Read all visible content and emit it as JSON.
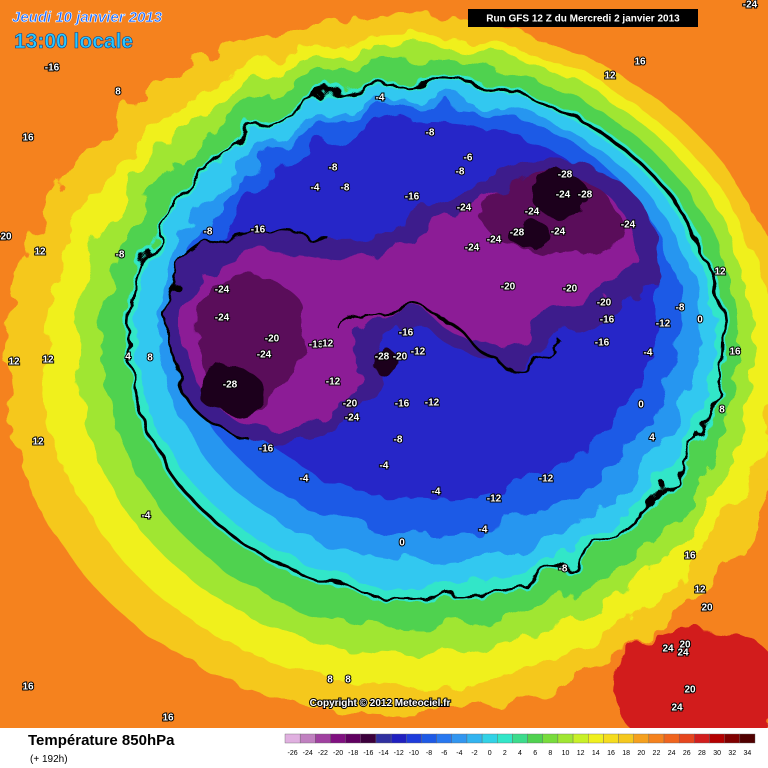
{
  "header": {
    "valid_date": "Jeudi 10 janvier 2013",
    "local_time": "13:00 locale",
    "run": "Run GFS 12 Z du Mercredi 2 janvier 2013"
  },
  "footer": {
    "copyright": "Copyright © 2012 Meteociel.fr",
    "field": "Température 850hPa",
    "lead_time": "(+ 192h)"
  },
  "contour_labels": [
    "-16",
    "8",
    "16",
    "20",
    "12",
    "-4",
    "-8",
    "-8",
    "-8",
    "-6",
    "-8",
    "-4",
    "-8",
    "-16",
    "-8",
    "-16",
    "-24",
    "-28",
    "-24",
    "-28",
    "-24",
    "-28",
    "-24",
    "-24",
    "-24",
    "-24",
    "-20",
    "-20",
    "-24",
    "-24",
    "-20",
    "-24",
    "-16",
    "-12",
    "-28",
    "-16",
    "-28",
    "-20",
    "-12",
    "-12",
    "-20",
    "-24",
    "-16",
    "-12",
    "-8",
    "-16",
    "-4",
    "-4",
    "-4",
    "-12",
    "-12",
    "-4",
    "0",
    "-8",
    "-12",
    "-16",
    "-20",
    "-16",
    "-8",
    "-4",
    "0",
    "4",
    "8",
    "12",
    "16",
    "12",
    "12",
    "4",
    "8",
    "12",
    "-4",
    "8",
    "8",
    "12",
    "16",
    "16",
    "16",
    "20",
    "24",
    "20",
    "24",
    "20",
    "24",
    "0",
    "12",
    "16",
    "-24"
  ],
  "scale": {
    "labels": [
      -26,
      -24,
      -22,
      -20,
      -18,
      -16,
      -14,
      -12,
      -10,
      -8,
      -6,
      -4,
      -2,
      0,
      2,
      4,
      6,
      8,
      10,
      12,
      14,
      16,
      18,
      20,
      22,
      24,
      26,
      28,
      30,
      32,
      34
    ],
    "colors": [
      "#e0b0e0",
      "#c080c0",
      "#a040a0",
      "#801080",
      "#600060",
      "#3c003c",
      "#3030a0",
      "#2020c0",
      "#1e3cdc",
      "#1e5ae6",
      "#2878f0",
      "#3296f0",
      "#32b4f0",
      "#32d2e6",
      "#32e6c8",
      "#3cdc8c",
      "#50d250",
      "#78dc3c",
      "#a0e632",
      "#c8f028",
      "#f0f01e",
      "#f5dc1e",
      "#f5c81e",
      "#f5a01e",
      "#f5821e",
      "#f0641e",
      "#e6461e",
      "#d21e1e",
      "#b40000",
      "#800000",
      "#500000"
    ]
  }
}
